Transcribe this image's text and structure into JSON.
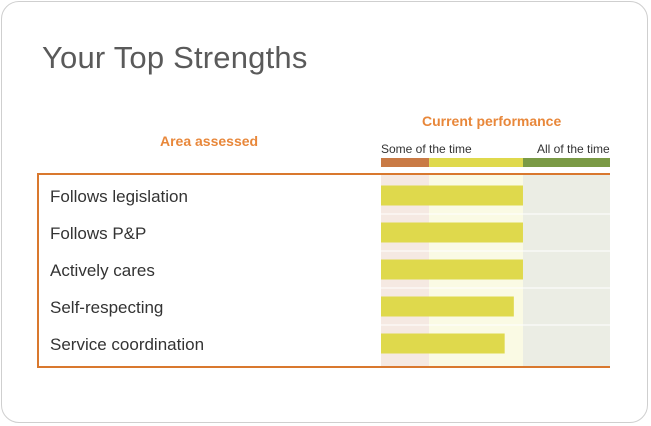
{
  "title": "Your Top Strengths",
  "colors": {
    "accent": "#e8873a",
    "border": "#d9782e",
    "bar": "#dfd94c",
    "scale_low": "#c97a45",
    "scale_mid": "#dfd94c",
    "scale_high": "#7a9a45",
    "zone_low": "#f5e9e2",
    "zone_mid": "#fafae4",
    "zone_high": "#ebede4"
  },
  "chart_data": {
    "type": "bar",
    "orientation": "horizontal",
    "xlabel": "Current performance",
    "ylabel": "Area assessed",
    "scale_labels": [
      "Some of the time",
      "All of the time"
    ],
    "xlim": [
      0,
      100
    ],
    "zones": [
      {
        "from": 0,
        "to": 21
      },
      {
        "from": 21,
        "to": 62
      },
      {
        "from": 62,
        "to": 100
      }
    ],
    "categories": [
      "Follows legislation",
      "Follows P&P",
      "Actively cares",
      "Self-respecting",
      "Service coordination"
    ],
    "values": [
      62,
      62,
      62,
      58,
      54
    ]
  }
}
